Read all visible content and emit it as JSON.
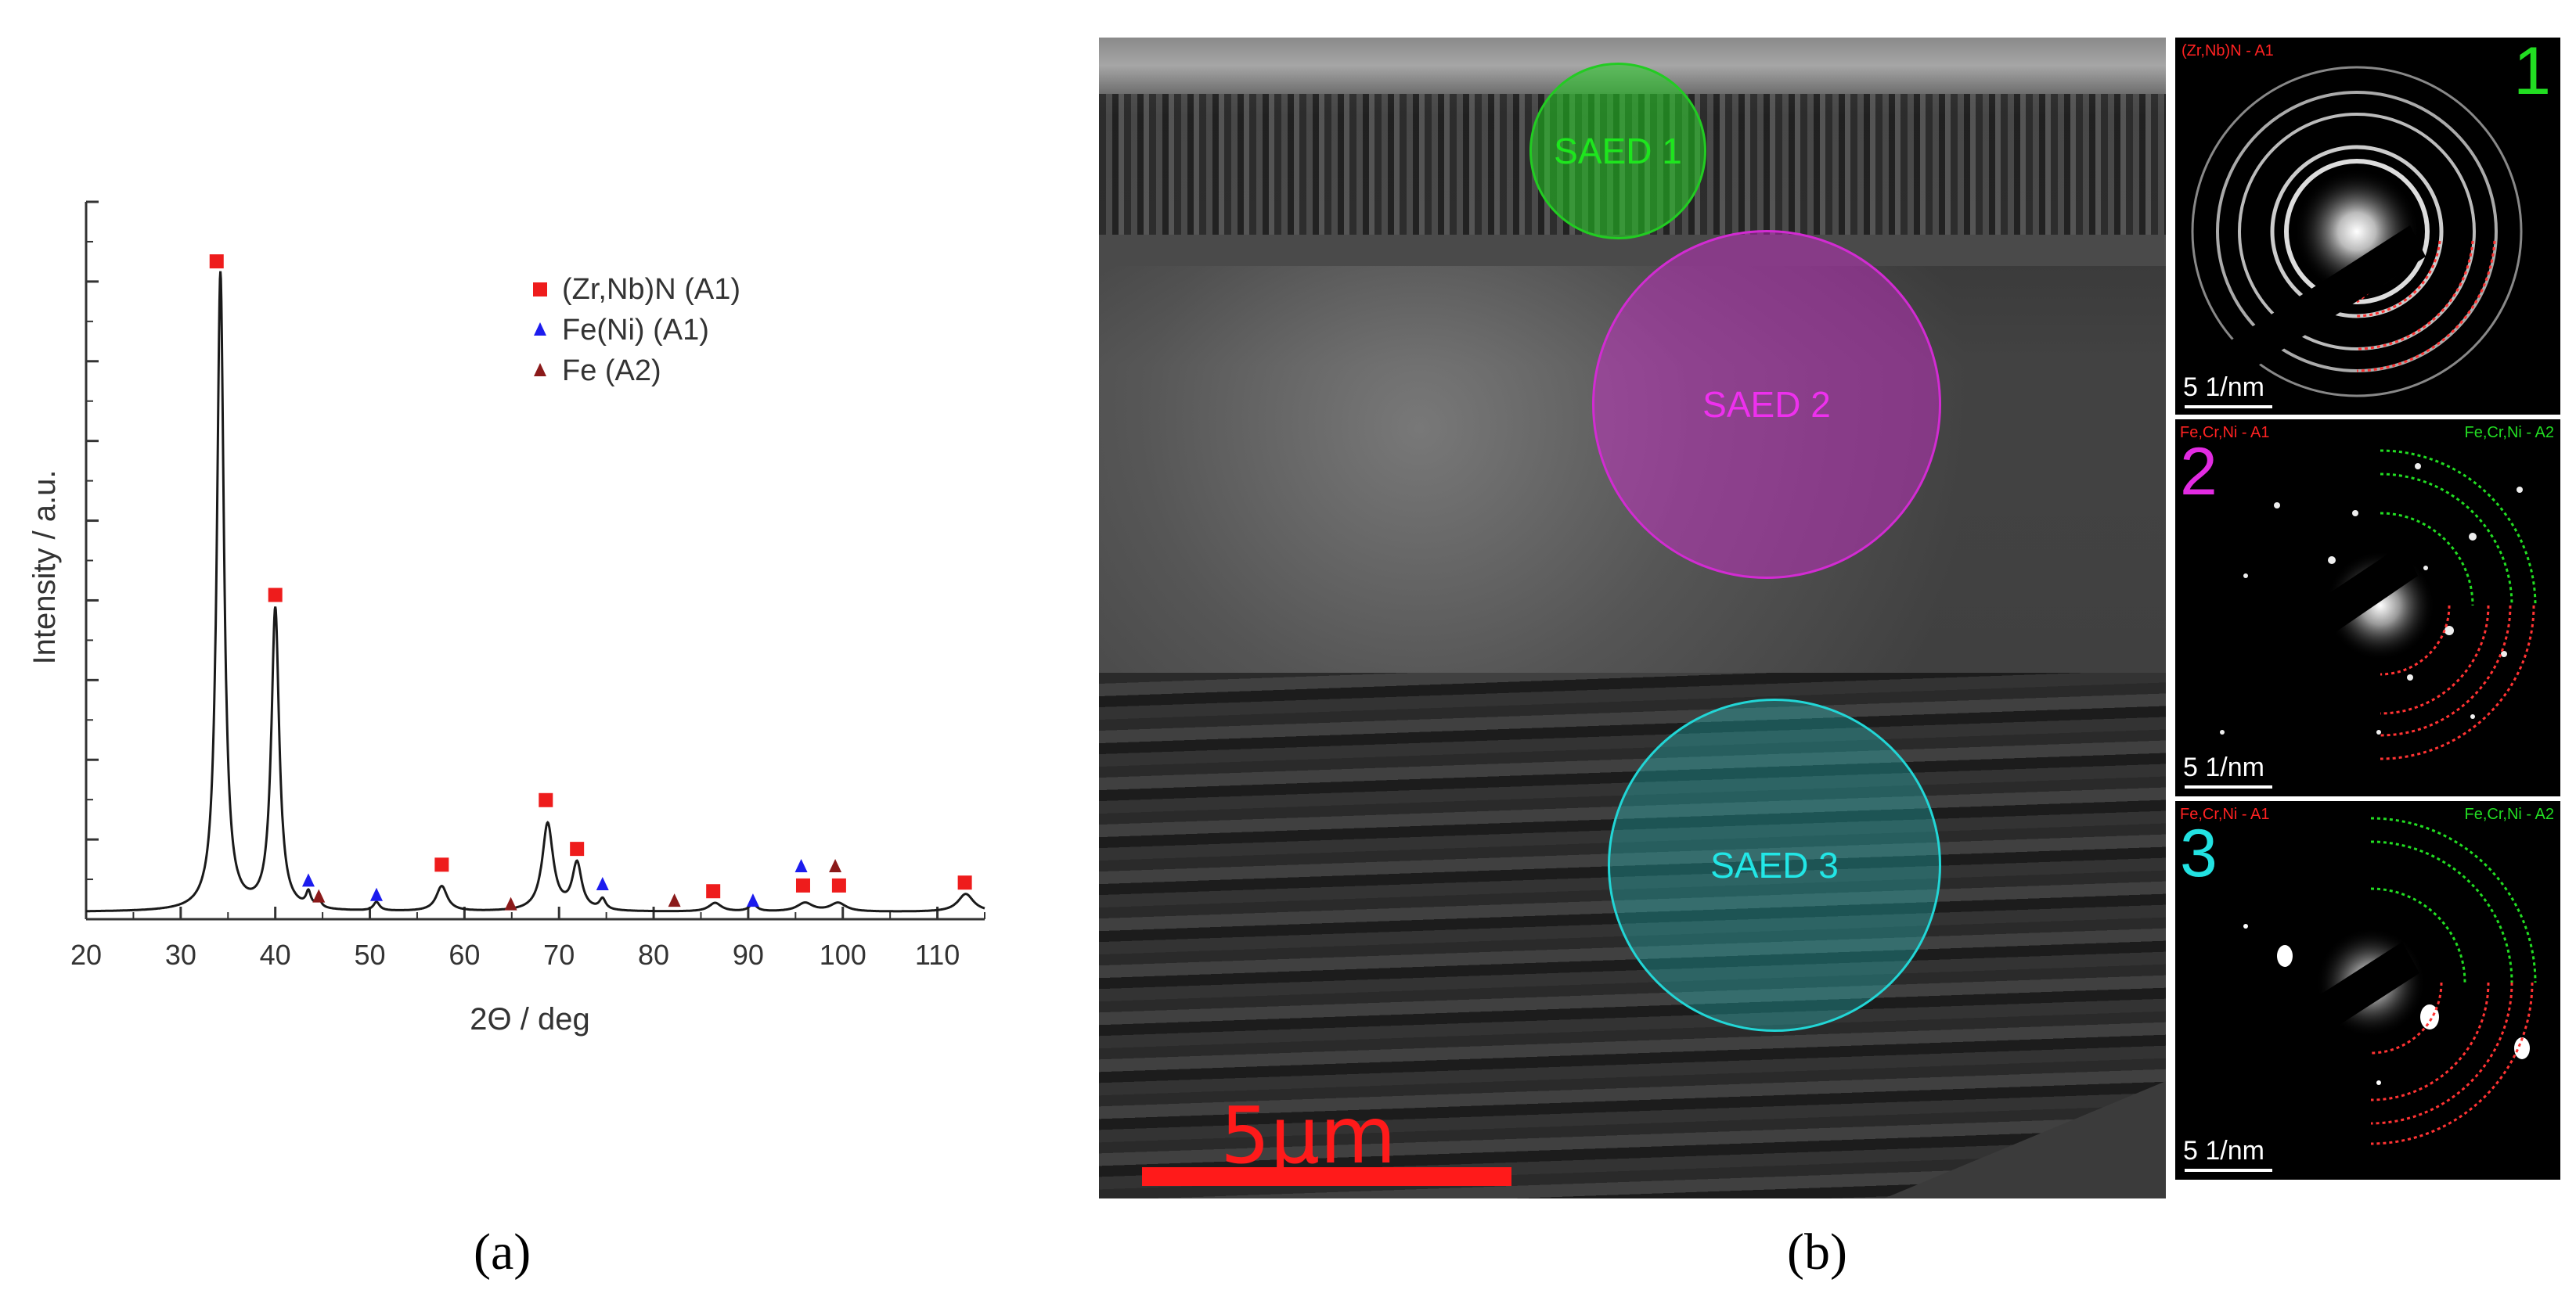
{
  "panel_a": {
    "caption": "(a)",
    "chart_data": {
      "type": "line",
      "xlabel": "2Θ / deg",
      "ylabel": "Intensity / a.u.",
      "xlim": [
        20,
        115
      ],
      "ylim": [
        0,
        1
      ],
      "xticks": [
        20,
        30,
        40,
        50,
        60,
        70,
        80,
        90,
        100,
        110
      ],
      "ytick_labels_shown": false,
      "legend_position": "top-right",
      "legend": [
        {
          "name": "(Zr,Nb)N (A1)",
          "marker": "square",
          "color": "#ee1c1c"
        },
        {
          "name": "Fe(Ni) (A1)",
          "marker": "triangle",
          "color": "#1c1cee"
        },
        {
          "name": "Fe (A2)",
          "marker": "triangle",
          "color": "#8b1a1a"
        }
      ],
      "series": [
        {
          "peaks": [
            {
              "x": 34.2,
              "y": 0.89,
              "w": 0.45
            },
            {
              "x": 40.0,
              "y": 0.42,
              "w": 0.5
            },
            {
              "x": 43.5,
              "y": 0.02,
              "w": 0.3
            },
            {
              "x": 44.6,
              "y": 0.012,
              "w": 0.3
            },
            {
              "x": 50.7,
              "y": 0.012,
              "w": 0.4
            },
            {
              "x": 57.6,
              "y": 0.035,
              "w": 0.7
            },
            {
              "x": 68.8,
              "y": 0.122,
              "w": 0.7
            },
            {
              "x": 71.9,
              "y": 0.065,
              "w": 0.6
            },
            {
              "x": 74.6,
              "y": 0.015,
              "w": 0.4
            },
            {
              "x": 86.5,
              "y": 0.012,
              "w": 0.8
            },
            {
              "x": 90.5,
              "y": 0.01,
              "w": 0.5
            },
            {
              "x": 96.0,
              "y": 0.012,
              "w": 1.0
            },
            {
              "x": 99.5,
              "y": 0.012,
              "w": 1.0
            },
            {
              "x": 113.0,
              "y": 0.025,
              "w": 1.0
            }
          ],
          "baseline": 0.01
        }
      ],
      "markers": [
        {
          "phase": "(Zr,Nb)N (A1)",
          "x": 33.8,
          "y": 0.917
        },
        {
          "phase": "(Zr,Nb)N (A1)",
          "x": 40.0,
          "y": 0.452
        },
        {
          "phase": "(Zr,Nb)N (A1)",
          "x": 57.6,
          "y": 0.076
        },
        {
          "phase": "(Zr,Nb)N (A1)",
          "x": 68.6,
          "y": 0.166
        },
        {
          "phase": "(Zr,Nb)N (A1)",
          "x": 71.9,
          "y": 0.098
        },
        {
          "phase": "(Zr,Nb)N (A1)",
          "x": 86.3,
          "y": 0.039
        },
        {
          "phase": "(Zr,Nb)N (A1)",
          "x": 95.8,
          "y": 0.047
        },
        {
          "phase": "(Zr,Nb)N (A1)",
          "x": 99.6,
          "y": 0.047
        },
        {
          "phase": "(Zr,Nb)N (A1)",
          "x": 112.9,
          "y": 0.051
        },
        {
          "phase": "Fe(Ni) (A1)",
          "x": 43.5,
          "y": 0.053
        },
        {
          "phase": "Fe(Ni) (A1)",
          "x": 50.7,
          "y": 0.033
        },
        {
          "phase": "Fe(Ni) (A1)",
          "x": 74.6,
          "y": 0.048
        },
        {
          "phase": "Fe(Ni) (A1)",
          "x": 90.5,
          "y": 0.025
        },
        {
          "phase": "Fe(Ni) (A1)",
          "x": 95.6,
          "y": 0.073
        },
        {
          "phase": "Fe (A2)",
          "x": 44.6,
          "y": 0.031
        },
        {
          "phase": "Fe (A2)",
          "x": 64.9,
          "y": 0.02
        },
        {
          "phase": "Fe (A2)",
          "x": 82.2,
          "y": 0.025
        },
        {
          "phase": "Fe (A2)",
          "x": 99.2,
          "y": 0.073
        }
      ]
    }
  },
  "panel_b": {
    "caption": "(b)",
    "scale_bar": "5µm",
    "saed_regions": [
      {
        "label": "SAED 1",
        "color": "#22cc22"
      },
      {
        "label": "SAED 2",
        "color": "#d22bd2"
      },
      {
        "label": "SAED 3",
        "color": "#22d6d6"
      }
    ],
    "diffraction": [
      {
        "number": "1",
        "number_color": "#22dd22",
        "label_left": "(Zr,Nb)N - A1",
        "label_right": "",
        "scale": "5 1/nm"
      },
      {
        "number": "2",
        "number_color": "#e22be2",
        "label_left": "Fe,Cr,Ni - A1",
        "label_right": "Fe,Cr,Ni - A2",
        "scale": "5 1/nm"
      },
      {
        "number": "3",
        "number_color": "#22e2e2",
        "label_left": "Fe,Cr,Ni - A1",
        "label_right": "Fe,Cr,Ni - A2",
        "scale": "5 1/nm"
      }
    ],
    "colors": {
      "red_arc": "#ff3333",
      "green_arc": "#22dd22",
      "red_label": "#ff2222",
      "green_label": "#22dd22"
    }
  }
}
